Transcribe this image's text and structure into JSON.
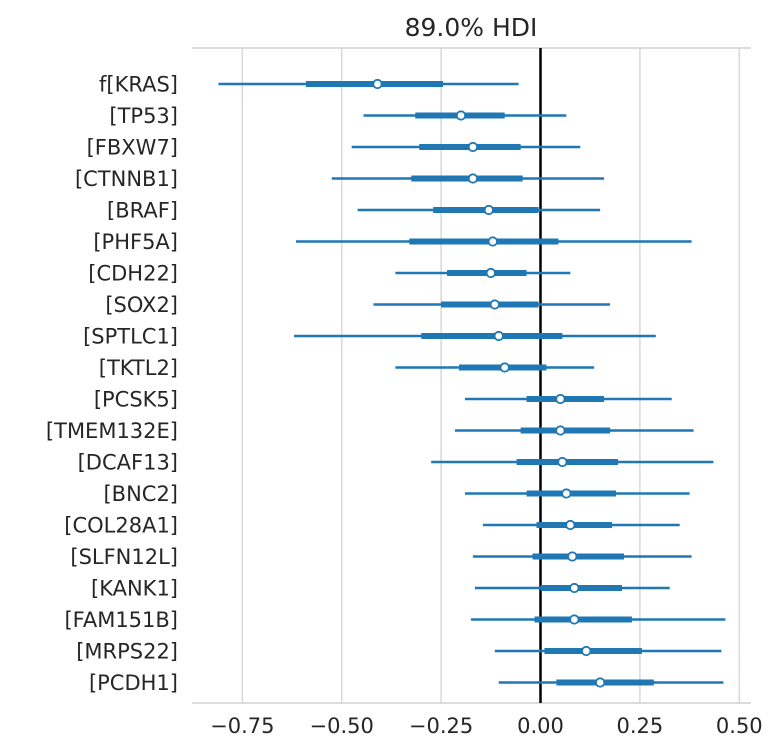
{
  "chart_data": {
    "type": "forest",
    "title": "89.0% HDI",
    "xlabel": "",
    "ylabel": "",
    "xlim": [
      -0.88,
      0.53
    ],
    "xticks": [
      -0.75,
      -0.5,
      -0.25,
      0.0,
      0.25,
      0.5
    ],
    "xtick_labels": [
      "−0.75",
      "−0.50",
      "−0.25",
      "0.00",
      "0.25",
      "0.50"
    ],
    "grid": "vertical",
    "reference_line": 0.0,
    "colors": {
      "interval": "#1f77b4",
      "reference": "#000000",
      "grid": "#d9d9d9",
      "point_fill": "#ffffff"
    },
    "categories": [
      "f[KRAS]",
      "[TP53]",
      "[FBXW7]",
      "[CTNNB1]",
      "[BRAF]",
      "[PHF5A]",
      "[CDH22]",
      "[SOX2]",
      "[SPTLC1]",
      "[TKTL2]",
      "[PCSK5]",
      "[TMEM132E]",
      "[DCAF13]",
      "[BNC2]",
      "[COL28A1]",
      "[SLFN12L]",
      "[KANK1]",
      "[FAM151B]",
      "[MRPS22]",
      "[PCDH1]"
    ],
    "median": [
      -0.41,
      -0.2,
      -0.17,
      -0.17,
      -0.13,
      -0.12,
      -0.125,
      -0.115,
      -0.105,
      -0.09,
      0.05,
      0.05,
      0.055,
      0.065,
      0.075,
      0.08,
      0.085,
      0.085,
      0.115,
      0.15
    ],
    "hdi_inner": [
      [
        -0.59,
        -0.245
      ],
      [
        -0.315,
        -0.09
      ],
      [
        -0.305,
        -0.05
      ],
      [
        -0.325,
        -0.045
      ],
      [
        -0.27,
        -0.005
      ],
      [
        -0.33,
        0.045
      ],
      [
        -0.235,
        -0.035
      ],
      [
        -0.25,
        -0.005
      ],
      [
        -0.3,
        0.055
      ],
      [
        -0.205,
        0.015
      ],
      [
        -0.035,
        0.16
      ],
      [
        -0.05,
        0.175
      ],
      [
        -0.06,
        0.195
      ],
      [
        -0.035,
        0.19
      ],
      [
        -0.01,
        0.18
      ],
      [
        -0.02,
        0.21
      ],
      [
        0.0,
        0.205
      ],
      [
        -0.015,
        0.23
      ],
      [
        0.01,
        0.255
      ],
      [
        0.04,
        0.285
      ]
    ],
    "hdi_outer": [
      [
        -0.81,
        -0.055
      ],
      [
        -0.445,
        0.065
      ],
      [
        -0.475,
        0.1
      ],
      [
        -0.525,
        0.16
      ],
      [
        -0.46,
        0.15
      ],
      [
        -0.615,
        0.38
      ],
      [
        -0.365,
        0.075
      ],
      [
        -0.42,
        0.175
      ],
      [
        -0.62,
        0.29
      ],
      [
        -0.365,
        0.135
      ],
      [
        -0.19,
        0.33
      ],
      [
        -0.215,
        0.385
      ],
      [
        -0.275,
        0.435
      ],
      [
        -0.19,
        0.375
      ],
      [
        -0.145,
        0.35
      ],
      [
        -0.17,
        0.38
      ],
      [
        -0.165,
        0.325
      ],
      [
        -0.175,
        0.465
      ],
      [
        -0.115,
        0.455
      ],
      [
        -0.105,
        0.46
      ]
    ]
  }
}
